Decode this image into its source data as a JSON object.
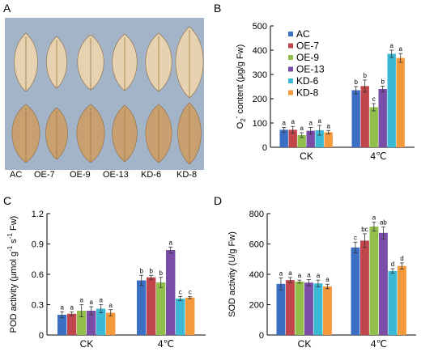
{
  "panel_labels": {
    "a": "A",
    "b": "B",
    "c": "C",
    "d": "D"
  },
  "photo": {
    "lines": [
      "AC",
      "OE-7",
      "OE-9",
      "OE-13",
      "KD-6",
      "KD-8"
    ],
    "background": "#a4b4c8",
    "top_row_color": "#e6d2b0",
    "bottom_row_color": "#c9a070"
  },
  "colors": {
    "AC": "#3b6fc4",
    "OE-7": "#c0464b",
    "OE-9": "#92bf4b",
    "OE-13": "#7a4ea8",
    "KD-6": "#3bb8d3",
    "KD-8": "#f59a3c"
  },
  "chart_data": [
    {
      "id": "B",
      "type": "bar",
      "categories": [
        "CK",
        "4℃"
      ],
      "ylabel": "O2- content (μg/g Fw)",
      "ylabel_main": "O",
      "ylabel_sub": "2",
      "ylabel_sup": "-",
      "ylabel_rest": " content (μg/g Fw)",
      "ylim": [
        0,
        500
      ],
      "yticks": [
        0,
        100,
        200,
        300,
        400,
        500
      ],
      "legend": "top-left",
      "series": [
        {
          "name": "AC",
          "values": [
            72,
            235
          ],
          "errors": [
            10,
            15
          ],
          "letters": [
            "a",
            "b"
          ]
        },
        {
          "name": "OE-7",
          "values": [
            72,
            252
          ],
          "errors": [
            14,
            25
          ],
          "letters": [
            "a",
            "b"
          ]
        },
        {
          "name": "OE-9",
          "values": [
            50,
            165
          ],
          "errors": [
            10,
            15
          ],
          "letters": [
            "a",
            "c"
          ]
        },
        {
          "name": "OE-13",
          "values": [
            68,
            240
          ],
          "errors": [
            14,
            12
          ],
          "letters": [
            "a",
            "b"
          ]
        },
        {
          "name": "KD-6",
          "values": [
            70,
            385
          ],
          "errors": [
            20,
            15
          ],
          "letters": [
            "a",
            "a"
          ]
        },
        {
          "name": "KD-8",
          "values": [
            62,
            368
          ],
          "errors": [
            7,
            18
          ],
          "letters": [
            "a",
            "a"
          ]
        }
      ]
    },
    {
      "id": "C",
      "type": "bar",
      "categories": [
        "CK",
        "4℃"
      ],
      "ylabel": "POD activity (μmol g-1 s-1 Fw)",
      "ylim": [
        0,
        1.2
      ],
      "yticks": [
        0,
        0.3,
        0.6,
        0.9,
        1.2
      ],
      "ytick_labels": [
        "0",
        "0.3",
        "0.6",
        "0.9",
        "1.2"
      ],
      "series": [
        {
          "name": "AC",
          "values": [
            0.2,
            0.54
          ],
          "errors": [
            0.03,
            0.05
          ],
          "letters": [
            "a",
            "b"
          ]
        },
        {
          "name": "OE-7",
          "values": [
            0.21,
            0.57
          ],
          "errors": [
            0.02,
            0.02
          ],
          "letters": [
            "a",
            "b"
          ]
        },
        {
          "name": "OE-9",
          "values": [
            0.24,
            0.52
          ],
          "errors": [
            0.06,
            0.05
          ],
          "letters": [
            "a",
            "b"
          ]
        },
        {
          "name": "OE-13",
          "values": [
            0.24,
            0.84
          ],
          "errors": [
            0.04,
            0.03
          ],
          "letters": [
            "a",
            "a"
          ]
        },
        {
          "name": "KD-6",
          "values": [
            0.26,
            0.36
          ],
          "errors": [
            0.04,
            0.02
          ],
          "letters": [
            "a",
            "c"
          ]
        },
        {
          "name": "KD-8",
          "values": [
            0.22,
            0.37
          ],
          "errors": [
            0.03,
            0.01
          ],
          "letters": [
            "a",
            "c"
          ]
        }
      ]
    },
    {
      "id": "D",
      "type": "bar",
      "categories": [
        "CK",
        "4℃"
      ],
      "ylabel": "SOD activity (U/g Fw)",
      "ylim": [
        0,
        800
      ],
      "yticks": [
        0,
        200,
        400,
        600,
        800
      ],
      "series": [
        {
          "name": "AC",
          "values": [
            337,
            577
          ],
          "errors": [
            40,
            35
          ],
          "letters": [
            "a",
            "c"
          ]
        },
        {
          "name": "OE-7",
          "values": [
            362,
            622
          ],
          "errors": [
            17,
            45
          ],
          "letters": [
            "a",
            "bc"
          ]
        },
        {
          "name": "OE-9",
          "values": [
            352,
            715
          ],
          "errors": [
            10,
            30
          ],
          "letters": [
            "a",
            "a"
          ]
        },
        {
          "name": "OE-13",
          "values": [
            345,
            673
          ],
          "errors": [
            20,
            40
          ],
          "letters": [
            "a",
            "ab"
          ]
        },
        {
          "name": "KD-6",
          "values": [
            340,
            422
          ],
          "errors": [
            22,
            15
          ],
          "letters": [
            "a",
            "d"
          ]
        },
        {
          "name": "KD-8",
          "values": [
            320,
            455
          ],
          "errors": [
            15,
            20
          ],
          "letters": [
            "a",
            "d"
          ]
        }
      ]
    }
  ]
}
